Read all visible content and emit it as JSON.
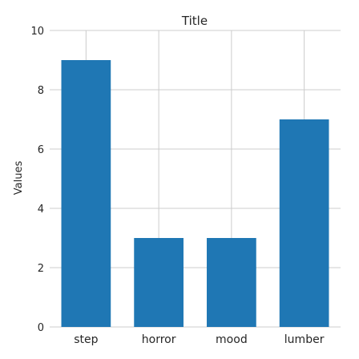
{
  "chart_data": {
    "type": "bar",
    "title": "Title",
    "xlabel": "",
    "ylabel": "Values",
    "categories": [
      "step",
      "horror",
      "mood",
      "lumber"
    ],
    "values": [
      9,
      3,
      3,
      7
    ],
    "ylim": [
      0,
      10
    ],
    "yticks": [
      0,
      2,
      4,
      6,
      8,
      10
    ],
    "grid": true,
    "bar_color": "#1f77b4",
    "grid_color": "#cccccc",
    "legend": "none"
  }
}
